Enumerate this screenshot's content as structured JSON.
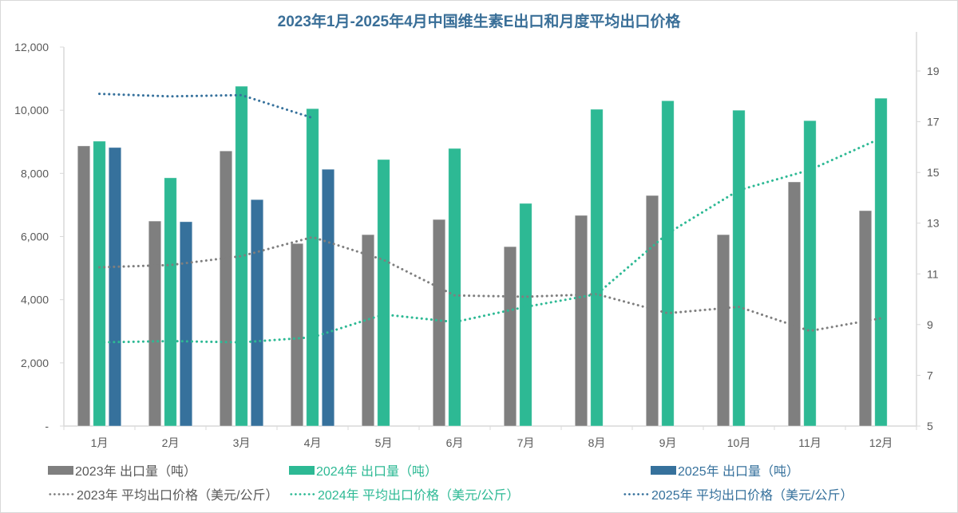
{
  "chart_data": {
    "type": "bar",
    "title": "2023年1月-2025年4月中国维生素E出口和月度平均出口价格",
    "xlabel": "",
    "ylabel": "",
    "categories": [
      "1月",
      "2月",
      "3月",
      "4月",
      "5月",
      "6月",
      "7月",
      "8月",
      "9月",
      "10月",
      "11月",
      "12月"
    ],
    "y_left": {
      "ylim": [
        0,
        12000
      ],
      "ticks": [
        0,
        2000,
        4000,
        6000,
        8000,
        10000,
        12000
      ],
      "tick_labels": [
        "-",
        "2,000",
        "4,000",
        "6,000",
        "8,000",
        "10,000",
        "12,000"
      ]
    },
    "y_right": {
      "ylim": [
        5,
        20
      ],
      "ticks": [
        5,
        7,
        9,
        11,
        13,
        15,
        17,
        19
      ],
      "tick_labels": [
        "5",
        "7",
        "9",
        "11",
        "13",
        "15",
        "17",
        "19"
      ]
    },
    "grid": false,
    "legend_position": "bottom",
    "series": [
      {
        "name": "2023年 出口量（吨）",
        "kind": "bar",
        "axis": "left",
        "color": "#7f7f7f",
        "values": [
          8870,
          6490,
          8710,
          5780,
          6060,
          6540,
          5680,
          6670,
          7300,
          6060,
          7730,
          6820
        ]
      },
      {
        "name": "2024年 出口量（吨）",
        "kind": "bar",
        "axis": "left",
        "color": "#2db994",
        "values": [
          9020,
          7860,
          10760,
          10050,
          8440,
          8790,
          7050,
          10030,
          10300,
          10000,
          9670,
          10380
        ]
      },
      {
        "name": "2025年 出口量（吨）",
        "kind": "bar",
        "axis": "left",
        "color": "#36719c",
        "values": [
          8820,
          6470,
          7170,
          8130,
          null,
          null,
          null,
          null,
          null,
          null,
          null,
          null
        ]
      },
      {
        "name": "2023年 平均出口价格（美元/公斤）",
        "kind": "line",
        "style": "dotted",
        "axis": "right",
        "color": "#7f7f7f",
        "values": [
          11.26,
          11.35,
          11.7,
          12.45,
          11.55,
          10.15,
          10.1,
          10.2,
          9.45,
          9.7,
          8.75,
          9.25
        ]
      },
      {
        "name": "2024年 平均出口价格（美元/公斤）",
        "kind": "line",
        "style": "dotted",
        "axis": "right",
        "color": "#2db994",
        "values": [
          8.3,
          8.35,
          8.3,
          8.5,
          9.4,
          9.1,
          9.7,
          10.2,
          12.6,
          14.3,
          15.1,
          16.35
        ]
      },
      {
        "name": "2025年 平均出口价格（美元/公斤）",
        "kind": "line",
        "style": "dotted",
        "axis": "right",
        "color": "#36719c",
        "values": [
          18.1,
          18.0,
          18.05,
          17.15,
          null,
          null,
          null,
          null,
          null,
          null,
          null,
          null
        ]
      }
    ]
  },
  "legend": {
    "bars": [
      {
        "label": "2023年 出口量（吨）",
        "color": "#7f7f7f",
        "text_color": "#595959"
      },
      {
        "label": "2024年 出口量（吨）",
        "color": "#2db994",
        "text_color": "#2db994"
      },
      {
        "label": "2025年 出口量（吨）",
        "color": "#36719c",
        "text_color": "#36719c"
      }
    ],
    "lines": [
      {
        "label": "2023年 平均出口价格（美元/公斤）",
        "color": "#7f7f7f",
        "text_color": "#595959"
      },
      {
        "label": "2024年 平均出口价格（美元/公斤）",
        "color": "#2db994",
        "text_color": "#2db994"
      },
      {
        "label": "2025年 平均出口价格（美元/公斤）",
        "color": "#36719c",
        "text_color": "#36719c"
      }
    ]
  }
}
